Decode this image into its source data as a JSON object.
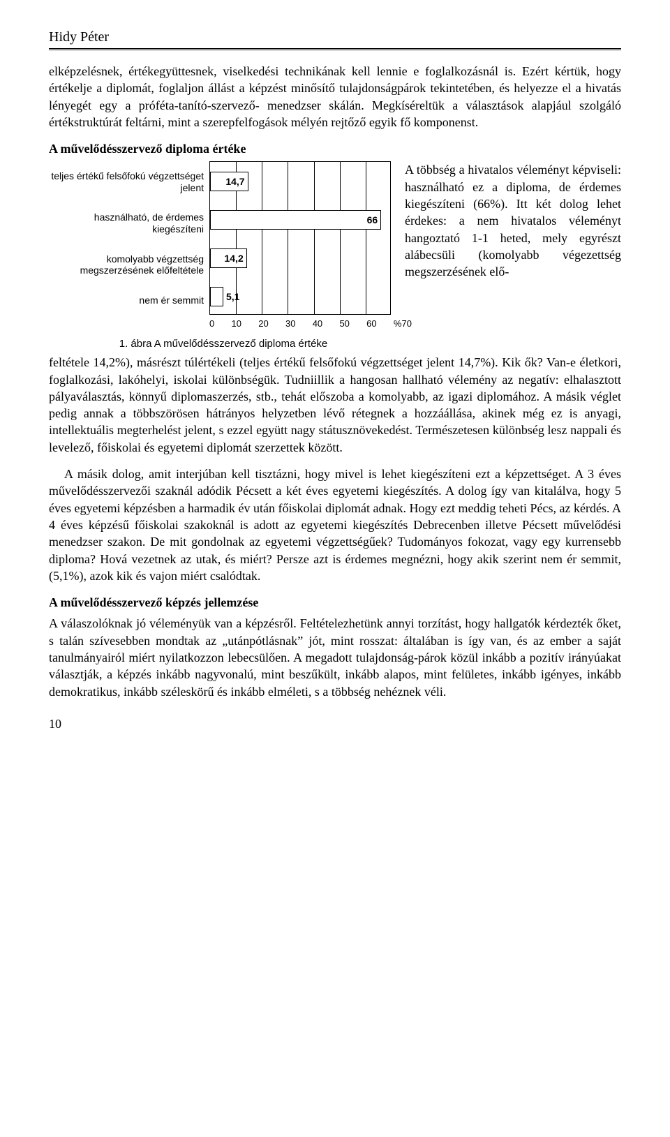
{
  "header": {
    "author": "Hidy Péter"
  },
  "intro_para": "elképzelésnek, értékegyüttesnek, viselkedési technikának kell lennie e foglalkozásnál is. Ezért kértük, hogy értékelje a diplomát, foglaljon állást a képzést minősítő tulajdonságpárok tekintetében, és helyezze el a hivatás lényegét egy a próféta-tanító-szervező- menedzser skálán. Megkíséreltük a választások alapjául szolgáló értékstruktúrát feltárni, mint a szerepfelfogások mélyén rejtőző egyik fő komponenst.",
  "section1_title": "A művelődésszervező diploma értéke",
  "chart": {
    "type": "bar-horizontal",
    "categories": [
      "teljes értékű felsőfokú végzettséget jelent",
      "használható, de érdemes kiegészíteni",
      "komolyabb végzettség megszerzésének előfeltétele",
      "nem ér semmit"
    ],
    "values": [
      14.7,
      66,
      14.2,
      5.1
    ],
    "value_labels": [
      "14,7",
      "66",
      "14,2",
      "5,1"
    ],
    "xlim": [
      0,
      70
    ],
    "xtick_step": 10,
    "xticks": [
      "0",
      "10",
      "20",
      "30",
      "40",
      "50",
      "60",
      "%70"
    ],
    "bar_fill": "#ffffff",
    "bar_border": "#000000",
    "grid_color": "#000000",
    "background_color": "#ffffff",
    "label_font": "Arial",
    "label_fontsize": 14,
    "caption": "1. ábra A művelődésszervező diploma értéke"
  },
  "side_text": "A többség a hivatalos véleményt képviseli: használható ez a diploma, de érdemes kiegészíteni (66%). Itt két dolog lehet érdekes: a nem hivatalos véleményt hangoztató 1-1 heted, mely egyrészt alábecsüli (komolyabb végezettség megszerzésének elő-",
  "body_para": "feltétele 14,2%), másrészt túlértékeli (teljes értékű felsőfokú végzettséget jelent 14,7%). Kik ők? Van-e életkori, foglalkozási, lakóhelyi, iskolai különbségük. Tudniillik a hangosan hallható vélemény az negatív: elhalasztott pályaválasztás, könnyű diplomaszerzés, stb., tehát előszoba a komolyabb, az igazi diplomához. A másik véglet pedig annak a többszörösen hátrányos helyzetben lévő rétegnek a hozzáállása, akinek még ez is anyagi, intellektuális megterhelést jelent, s ezzel együtt nagy státusznövekedést. Természetesen különbség lesz nappali és levelező, főiskolai és egyetemi diplomát szerzettek között.",
  "body_para2": "A másik dolog, amit interjúban kell tisztázni, hogy mivel is lehet kiegészíteni ezt a képzettséget. A 3 éves művelődésszervezői szaknál adódik Pécsett a két éves egyetemi kiegészítés. A dolog így van kitalálva, hogy 5 éves egyetemi képzésben a harmadik év után főiskolai diplomát adnak. Hogy ezt meddig teheti Pécs, az kérdés. A 4 éves képzésű főiskolai szakoknál is adott az egyetemi kiegészítés Debrecenben illetve Pécsett művelődési menedzser szakon. De mit gondolnak az egyetemi végzettségűek? Tudományos fokozat, vagy egy kurrensebb diploma? Hová vezetnek az utak, és miért?  Persze azt is érdemes megnézni, hogy akik szerint nem ér semmit, (5,1%), azok kik és vajon miért csalódtak.",
  "section2_title": "A művelődésszervező képzés jellemzése",
  "section2_para": "A válaszolóknak jó véleményük van a képzésről. Feltételezhetünk annyi torzítást, hogy hallgatók kérdezték őket, s talán szívesebben mondtak az „utánpótlásnak” jót, mint rosszat: általában is így van, és az ember a saját tanulmányairól miért nyilatkozzon lebecsülően. A megadott tulajdonság-párok közül inkább a pozitív irányúakat választják, a képzés inkább nagyvonalú, mint beszűkült, inkább alapos, mint felületes, inkább igényes, inkább demokratikus, inkább széleskörű és inkább elméleti, s a többség nehéznek véli.",
  "page_number": "10"
}
